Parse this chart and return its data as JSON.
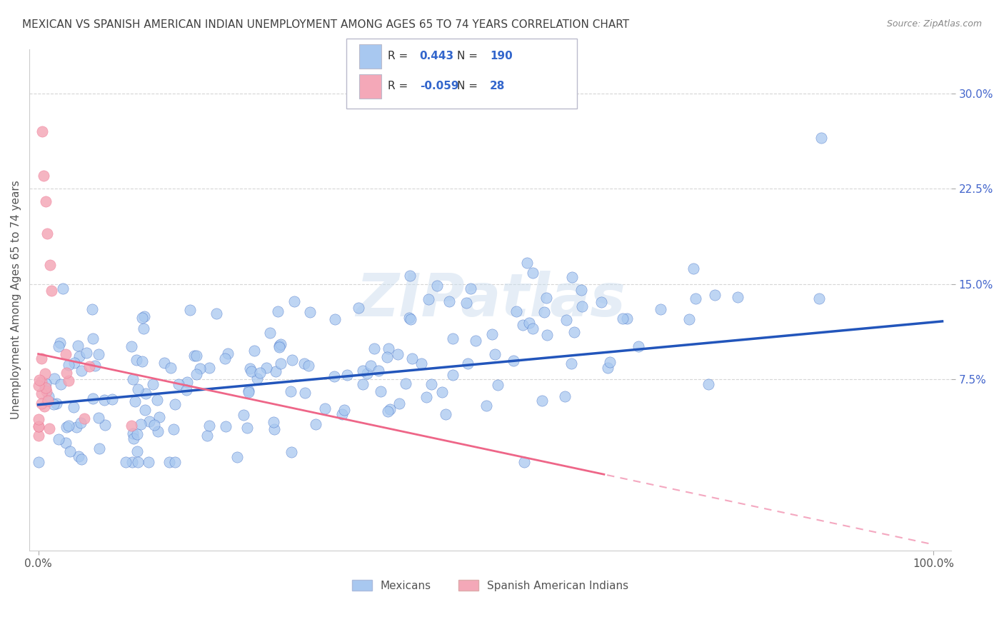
{
  "title": "MEXICAN VS SPANISH AMERICAN INDIAN UNEMPLOYMENT AMONG AGES 65 TO 74 YEARS CORRELATION CHART",
  "source": "Source: ZipAtlas.com",
  "ylabel": "Unemployment Among Ages 65 to 74 years",
  "xlim": [
    -0.01,
    1.02
  ],
  "ylim": [
    -0.06,
    0.335
  ],
  "yticks": [
    0.075,
    0.15,
    0.225,
    0.3
  ],
  "ytick_labels": [
    "7.5%",
    "15.0%",
    "22.5%",
    "30.0%"
  ],
  "xtick_labels": [
    "0.0%",
    "100.0%"
  ],
  "blue_R": 0.443,
  "blue_N": 190,
  "pink_R": -0.059,
  "pink_N": 28,
  "blue_color": "#A8C8F0",
  "pink_color": "#F4A8B8",
  "blue_line_color": "#2255BB",
  "pink_line_color": "#EE6688",
  "pink_line_dashed_color": "#F4A8C0",
  "background_color": "#FFFFFF",
  "title_color": "#404040",
  "title_fontsize": 11,
  "source_fontsize": 9,
  "legend_label_blue": "Mexicans",
  "legend_label_pink": "Spanish American Indians",
  "blue_slope": 0.065,
  "blue_intercept": 0.055,
  "pink_slope": -0.15,
  "pink_intercept": 0.095
}
